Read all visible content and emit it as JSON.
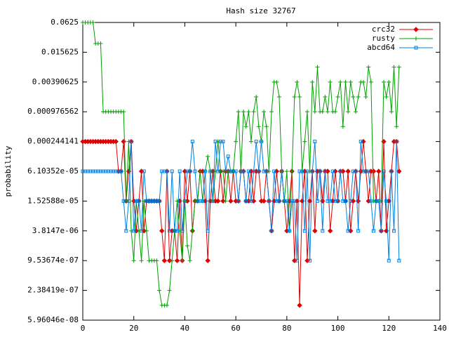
{
  "chart_data": {
    "type": "line",
    "title": "Hash size 32767",
    "ylabel": "probability",
    "ylog": true,
    "grid": false,
    "legend": "upper right",
    "xlim": [
      0,
      140
    ],
    "xticks": [
      0,
      20,
      40,
      60,
      80,
      100,
      120,
      140
    ],
    "ylim": [
      5.96046e-08,
      0.0625
    ],
    "yticks": [
      0.0625,
      0.015625,
      0.00390625,
      {
        "value": 0.0009765625,
        "label": "0.000976562"
      },
      {
        "value": 0.000244140625,
        "label": "0.000244141"
      },
      {
        "value": 6.103515625e-05,
        "label": "6.10352e-05"
      },
      {
        "value": 1.52587890625e-05,
        "label": "1.52588e-05"
      },
      {
        "value": 3.814697265625e-06,
        "label": "3.8147e-06"
      },
      {
        "value": 9.5367431640625e-07,
        "label": "9.53674e-07"
      },
      {
        "value": 2.384185791015625e-07,
        "label": "2.38419e-07"
      },
      {
        "value": 5.96046e-08,
        "label": "5.96046e-08"
      }
    ],
    "x": [
      0,
      1,
      2,
      3,
      4,
      5,
      6,
      7,
      8,
      9,
      10,
      11,
      12,
      13,
      14,
      15,
      16,
      17,
      18,
      19,
      20,
      21,
      22,
      23,
      24,
      25,
      26,
      27,
      28,
      29,
      30,
      31,
      32,
      33,
      34,
      35,
      36,
      37,
      38,
      39,
      40,
      41,
      42,
      43,
      44,
      45,
      46,
      47,
      48,
      49,
      50,
      51,
      52,
      53,
      54,
      55,
      56,
      57,
      58,
      59,
      60,
      61,
      62,
      63,
      64,
      65,
      66,
      67,
      68,
      69,
      70,
      71,
      72,
      73,
      74,
      75,
      76,
      77,
      78,
      79,
      80,
      81,
      82,
      83,
      84,
      85,
      86,
      87,
      88,
      89,
      90,
      91,
      92,
      93,
      94,
      95,
      96,
      97,
      98,
      99,
      100,
      101,
      102,
      103,
      104,
      105,
      106,
      107,
      108,
      109,
      110,
      111,
      112,
      113,
      114,
      115,
      116,
      117,
      118,
      119,
      120,
      121,
      122,
      123,
      124
    ],
    "series": [
      {
        "name": "crc32",
        "color": "#e00000",
        "marker": "diamond",
        "values": [
          0.000244,
          0.000244,
          0.000244,
          0.000244,
          0.000244,
          0.000244,
          0.000244,
          0.000244,
          0.000244,
          0.000244,
          0.000244,
          0.000244,
          0.000244,
          0.000244,
          6.1e-05,
          6.1e-05,
          0.000244,
          1.53e-05,
          6.1e-05,
          0.000244,
          1.53e-05,
          3.81e-06,
          1.53e-05,
          6.1e-05,
          3.81e-06,
          1.53e-05,
          1.53e-05,
          1.53e-05,
          1.53e-05,
          1.53e-05,
          1.53e-05,
          3.81e-06,
          9.54e-07,
          6.1e-05,
          9.54e-07,
          3.81e-06,
          3.81e-06,
          9.54e-07,
          1.53e-05,
          9.54e-07,
          6.1e-05,
          1.53e-05,
          6.1e-05,
          3.81e-06,
          1.53e-05,
          1.53e-05,
          6.1e-05,
          6.1e-05,
          1.53e-05,
          9.54e-07,
          1.53e-05,
          6.1e-05,
          1.53e-05,
          1.53e-05,
          6.1e-05,
          1.53e-05,
          6.1e-05,
          6.1e-05,
          1.53e-05,
          6.1e-05,
          1.53e-05,
          1.53e-05,
          6.1e-05,
          6.1e-05,
          1.53e-05,
          1.53e-05,
          6.1e-05,
          1.53e-05,
          6.1e-05,
          6.1e-05,
          1.53e-05,
          1.53e-05,
          6.1e-05,
          1.53e-05,
          3.81e-06,
          1.53e-05,
          6.1e-05,
          1.53e-05,
          6.1e-05,
          1.53e-05,
          3.81e-06,
          1.53e-05,
          6.1e-05,
          9.54e-07,
          1.53e-05,
          1.19e-07,
          1.53e-05,
          6.1e-05,
          9.54e-07,
          1.53e-05,
          6.1e-05,
          3.81e-06,
          6.1e-05,
          6.1e-05,
          1.53e-05,
          6.1e-05,
          6.1e-05,
          3.81e-06,
          1.53e-05,
          6.1e-05,
          1.53e-05,
          6.1e-05,
          6.1e-05,
          1.53e-05,
          6.1e-05,
          3.81e-06,
          1.53e-05,
          6.1e-05,
          1.53e-05,
          6.1e-05,
          0.000244,
          6.1e-05,
          1.53e-05,
          6.1e-05,
          6.1e-05,
          1.53e-05,
          6.1e-05,
          3.81e-06,
          0.000244,
          3.81e-06,
          1.53e-05,
          6.1e-05,
          0.000244,
          0.000244,
          6.1e-05
        ]
      },
      {
        "name": "rusty",
        "color": "#00a000",
        "marker": "plus",
        "values": [
          0.0625,
          0.0625,
          0.0625,
          0.0625,
          0.0625,
          0.0234,
          0.0234,
          0.0234,
          0.00098,
          0.00098,
          0.00098,
          0.00098,
          0.00098,
          0.00098,
          0.00098,
          0.00098,
          0.00098,
          1.53e-05,
          0.000244,
          3.81e-06,
          9.54e-07,
          1.53e-05,
          3.81e-06,
          9.54e-07,
          1.53e-05,
          3.81e-06,
          9.54e-07,
          9.54e-07,
          9.54e-07,
          9.54e-07,
          2.38e-07,
          1.19e-07,
          1.19e-07,
          1.19e-07,
          2.38e-07,
          9.54e-07,
          3.81e-06,
          1.53e-05,
          3.81e-06,
          9.54e-07,
          1.53e-05,
          1.91e-06,
          9.54e-07,
          3.81e-06,
          1.53e-05,
          1.53e-05,
          6.1e-05,
          1.53e-05,
          6.1e-05,
          0.000122,
          6.1e-05,
          1.53e-05,
          6.1e-05,
          0.000244,
          6.1e-05,
          6.1e-05,
          1.53e-05,
          6.1e-05,
          6.1e-05,
          6.1e-05,
          0.000244,
          0.00098,
          6.1e-05,
          0.00098,
          0.00049,
          0.00098,
          0.000244,
          0.00098,
          0.00195,
          0.00049,
          0.000244,
          0.00098,
          0.00049,
          6.1e-05,
          0.00098,
          0.0039,
          0.0039,
          0.00195,
          6.1e-05,
          1.53e-05,
          6.1e-05,
          3.81e-06,
          6.1e-05,
          0.00195,
          0.0039,
          0.00195,
          6.1e-05,
          0.000244,
          0.00098,
          6.1e-05,
          0.0039,
          0.00098,
          0.0078,
          0.00098,
          0.00098,
          0.00195,
          0.00098,
          0.0039,
          0.00098,
          0.00098,
          0.00195,
          0.0039,
          0.00049,
          0.0039,
          0.00098,
          0.0039,
          0.00195,
          0.00098,
          0.00195,
          0.0039,
          0.0039,
          0.00195,
          0.0078,
          0.0039,
          1.53e-05,
          1.53e-05,
          1.53e-05,
          1.53e-05,
          0.0039,
          0.00195,
          0.0039,
          0.00098,
          0.0078,
          0.00049,
          0.0078
        ]
      },
      {
        "name": "abcd64",
        "color": "#0080e0",
        "marker": "square",
        "values": [
          6.1e-05,
          6.1e-05,
          6.1e-05,
          6.1e-05,
          6.1e-05,
          6.1e-05,
          6.1e-05,
          6.1e-05,
          6.1e-05,
          6.1e-05,
          6.1e-05,
          6.1e-05,
          6.1e-05,
          6.1e-05,
          6.1e-05,
          6.1e-05,
          1.53e-05,
          3.81e-06,
          1.53e-05,
          0.000244,
          3.81e-06,
          1.53e-05,
          1.53e-05,
          3.81e-06,
          6.1e-05,
          1.53e-05,
          1.53e-05,
          1.53e-05,
          1.53e-05,
          1.53e-05,
          1.53e-05,
          6.1e-05,
          6.1e-05,
          6.1e-05,
          3.81e-06,
          6.1e-05,
          3.81e-06,
          3.81e-06,
          6.1e-05,
          3.81e-06,
          1.53e-05,
          6.1e-05,
          6.1e-05,
          0.000244,
          6.1e-05,
          1.53e-05,
          1.53e-05,
          1.53e-05,
          6.1e-05,
          3.81e-06,
          6.1e-05,
          1.53e-05,
          0.000244,
          6.1e-05,
          0.000244,
          0.000244,
          6.1e-05,
          0.000122,
          6.1e-05,
          6.1e-05,
          6.1e-05,
          1.53e-05,
          6.1e-05,
          6.1e-05,
          1.53e-05,
          6.1e-05,
          1.53e-05,
          6.1e-05,
          0.000244,
          6.1e-05,
          0.000244,
          6.1e-05,
          6.1e-05,
          1.53e-05,
          3.81e-06,
          6.1e-05,
          1.53e-05,
          1.53e-05,
          6.1e-05,
          1.53e-05,
          1.53e-05,
          3.81e-06,
          1.53e-05,
          1.53e-05,
          9.54e-07,
          6.1e-05,
          6.1e-05,
          3.81e-06,
          6.1e-05,
          9.54e-07,
          6.1e-05,
          0.000244,
          1.53e-05,
          6.1e-05,
          3.81e-06,
          6.1e-05,
          1.53e-05,
          1.53e-05,
          6.1e-05,
          1.53e-05,
          1.53e-05,
          6.1e-05,
          1.53e-05,
          1.53e-05,
          3.81e-06,
          1.53e-05,
          6.1e-05,
          6.1e-05,
          3.81e-06,
          0.000244,
          6.1e-05,
          6.1e-05,
          6.1e-05,
          1.53e-05,
          3.81e-06,
          1.53e-05,
          1.53e-05,
          3.81e-06,
          6.1e-05,
          1.53e-05,
          9.54e-07,
          6.1e-05,
          3.81e-06,
          0.000244,
          9.54e-07
        ]
      }
    ]
  }
}
